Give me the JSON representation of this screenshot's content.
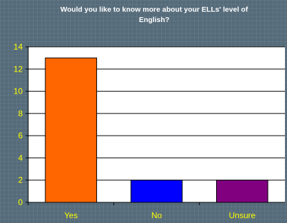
{
  "chart_data": {
    "type": "bar",
    "title": "Would you like to know more about your ELLs' level of English?",
    "title_lines": [
      "Would you like to know more about your ELLs' level of",
      "English?"
    ],
    "categories": [
      "Yes",
      "No",
      "Unsure"
    ],
    "values": [
      13,
      2,
      2
    ],
    "bar_colors": [
      "#ff6600",
      "#0000ff",
      "#800080"
    ],
    "xlabel": "",
    "ylabel": "",
    "ylim": [
      0,
      14
    ],
    "yticks": [
      0,
      2,
      4,
      6,
      8,
      10,
      12,
      14
    ],
    "grid": true,
    "legend": "none"
  },
  "colors": {
    "background": "#556b7a",
    "plot_area": "#ffffff",
    "tick_text": "#ffff00",
    "title_text": "#ffffff"
  }
}
